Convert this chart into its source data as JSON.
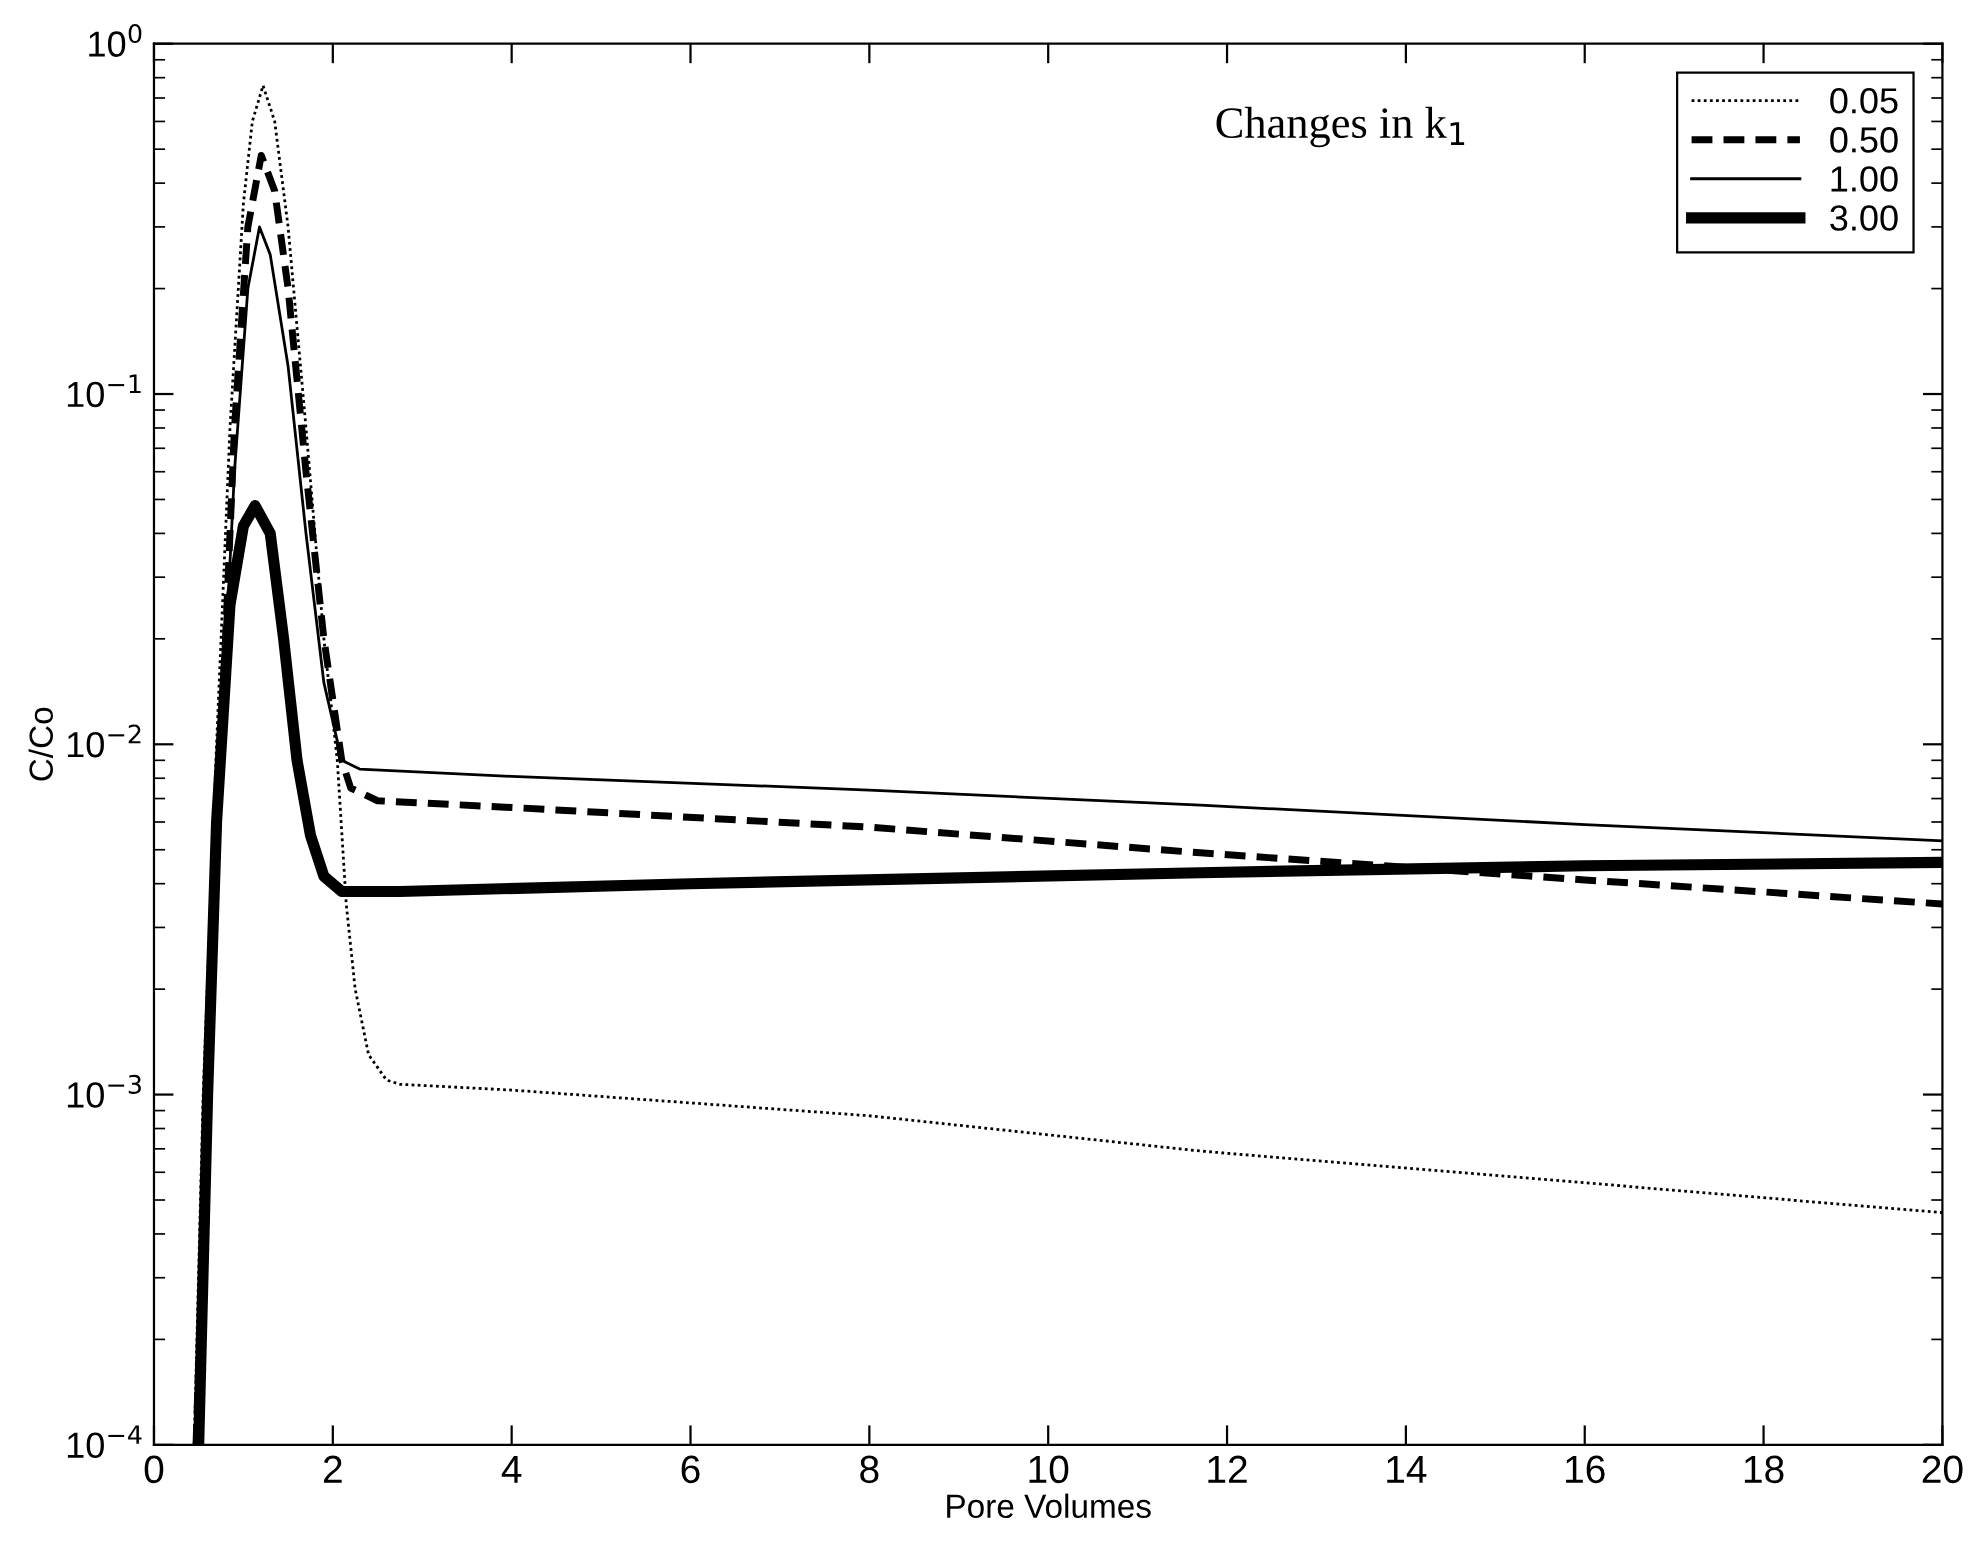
{
  "chart_data": {
    "type": "line",
    "xlabel": "Pore Volumes",
    "ylabel": "C/Co",
    "log": "y",
    "xlim": [
      0,
      20
    ],
    "ylim": [
      0.0001,
      1
    ],
    "xticks": [
      0,
      2,
      4,
      6,
      8,
      10,
      12,
      14,
      16,
      18,
      20
    ],
    "yticks": [
      {
        "value": 0.0001,
        "label": "10$^{−4}$"
      },
      {
        "value": 0.001,
        "label": "10$^{−3}$"
      },
      {
        "value": 0.01,
        "label": "10$^{−2}$"
      },
      {
        "value": 0.1,
        "label": "10$^{−1}$"
      },
      {
        "value": 1,
        "label": "10$^{0}$"
      }
    ],
    "grid": false,
    "legend": "top right",
    "marker": "none",
    "annotations": [
      "Changes in k$_{1}$"
    ],
    "series": [
      {
        "name": "0.05",
        "color": "#000000",
        "line_style": "dotted",
        "x": [
          0.45,
          0.55,
          0.7,
          0.85,
          1.0,
          1.1,
          1.22,
          1.35,
          1.5,
          1.7,
          1.9,
          2.05,
          2.15,
          2.25,
          2.4,
          2.6,
          2.75,
          4,
          8,
          11.7,
          16,
          20
        ],
        "values": [
          0.0001,
          0.001,
          0.01,
          0.08,
          0.35,
          0.6,
          0.76,
          0.6,
          0.3,
          0.08,
          0.02,
          0.009,
          0.0035,
          0.002,
          0.0013,
          0.0011,
          0.00107,
          0.00103,
          0.00087,
          0.00069,
          0.00056,
          0.00046
        ]
      },
      {
        "name": "0.50",
        "color": "#000000",
        "line_style": "dashed",
        "x": [
          0.47,
          0.6,
          0.75,
          0.9,
          1.05,
          1.2,
          1.35,
          1.5,
          1.7,
          1.9,
          2.1,
          2.2,
          2.5,
          4,
          8,
          11.7,
          16,
          20
        ],
        "values": [
          0.0001,
          0.001,
          0.01,
          0.08,
          0.3,
          0.48,
          0.38,
          0.2,
          0.06,
          0.02,
          0.009,
          0.0075,
          0.0069,
          0.0066,
          0.0058,
          0.0049,
          0.0041,
          0.0035
        ]
      },
      {
        "name": "1.00",
        "color": "#000000",
        "line_style": "solid",
        "x": [
          0.48,
          0.6,
          0.75,
          0.9,
          1.05,
          1.18,
          1.3,
          1.5,
          1.7,
          1.9,
          2.1,
          2.3,
          4,
          8,
          11.7,
          16,
          20
        ],
        "values": [
          0.0001,
          0.001,
          0.01,
          0.06,
          0.2,
          0.3,
          0.25,
          0.12,
          0.04,
          0.015,
          0.009,
          0.0085,
          0.0081,
          0.0074,
          0.0067,
          0.0059,
          0.0053
        ]
      },
      {
        "name": "3.00",
        "color": "#000000",
        "line_style": "solid",
        "x": [
          0.5,
          0.6,
          0.7,
          0.85,
          1.0,
          1.13,
          1.3,
          1.45,
          1.6,
          1.75,
          1.9,
          2.1,
          2.75,
          6,
          11.7,
          16,
          20
        ],
        "values": [
          0.0001,
          0.001,
          0.006,
          0.025,
          0.042,
          0.048,
          0.04,
          0.02,
          0.009,
          0.0055,
          0.0042,
          0.0038,
          0.0038,
          0.004,
          0.0043,
          0.0045,
          0.0046
        ]
      }
    ]
  }
}
